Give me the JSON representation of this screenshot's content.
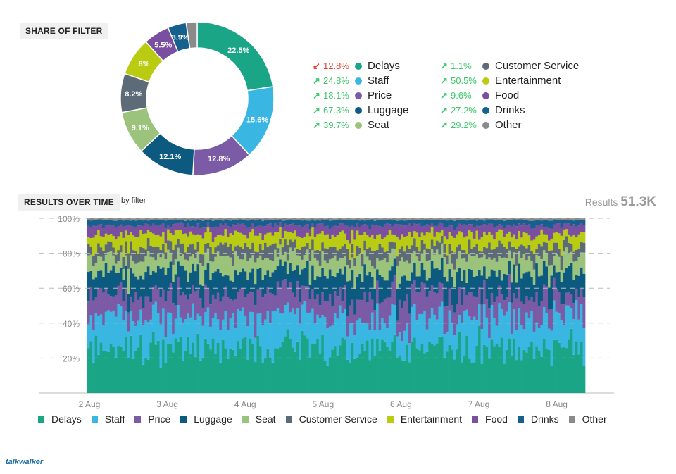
{
  "share_section": {
    "title": "SHARE OF FILTER"
  },
  "time_section": {
    "title": "RESULTS OVER TIME",
    "by_filter": "by filter",
    "results_label": "Results",
    "results_value": "51.3K"
  },
  "brand": "talkwalker",
  "colors": {
    "Delays": "#1aa686",
    "Staff": "#3ab6e2",
    "Price": "#7b5aa6",
    "Luggage": "#0d5a80",
    "Seat": "#9bc37b",
    "Customer Service": "#5d6b78",
    "Entertainment": "#b9cc12",
    "Food": "#7a4fa0",
    "Drinks": "#16608e",
    "Other": "#8a8a8a",
    "up": "#3cc76b",
    "down": "#e3402f"
  },
  "chart_data": [
    {
      "type": "pie",
      "title": "SHARE OF FILTER",
      "categories": [
        "Delays",
        "Staff",
        "Price",
        "Luggage",
        "Seat",
        "Customer Service",
        "Entertainment",
        "Food",
        "Drinks",
        "Other"
      ],
      "values": [
        22.5,
        15.6,
        12.8,
        12.1,
        9.1,
        8.2,
        8,
        5.5,
        3.9,
        2.3
      ],
      "slice_labels": [
        "22.5%",
        "15.6%",
        "12.8%",
        "12.1%",
        "9.1%",
        "8.2%",
        "8%",
        "5.5%",
        "3.9%",
        ""
      ],
      "legend": [
        {
          "name": "Delays",
          "change": "12.8%",
          "direction": "down"
        },
        {
          "name": "Staff",
          "change": "24.8%",
          "direction": "up"
        },
        {
          "name": "Price",
          "change": "18.1%",
          "direction": "up"
        },
        {
          "name": "Luggage",
          "change": "67.3%",
          "direction": "up"
        },
        {
          "name": "Seat",
          "change": "39.7%",
          "direction": "up"
        },
        {
          "name": "Customer Service",
          "change": "1.1%",
          "direction": "up"
        },
        {
          "name": "Entertainment",
          "change": "50.5%",
          "direction": "up"
        },
        {
          "name": "Food",
          "change": "9.6%",
          "direction": "up"
        },
        {
          "name": "Drinks",
          "change": "27.2%",
          "direction": "up"
        },
        {
          "name": "Other",
          "change": "29.2%",
          "direction": "up"
        }
      ]
    },
    {
      "type": "area",
      "title": "RESULTS OVER TIME",
      "stacking": "percent",
      "x_ticks": [
        "2 Aug",
        "3 Aug",
        "4 Aug",
        "5 Aug",
        "6 Aug",
        "7 Aug",
        "8 Aug"
      ],
      "y_ticks": [
        "20%",
        "40%",
        "60%",
        "80%",
        "100%"
      ],
      "ylim": [
        0,
        100
      ],
      "grid": true,
      "legend_placement": "bottom",
      "series": [
        {
          "name": "Delays",
          "avg_share": 25
        },
        {
          "name": "Staff",
          "avg_share": 18
        },
        {
          "name": "Price",
          "avg_share": 13
        },
        {
          "name": "Luggage",
          "avg_share": 13
        },
        {
          "name": "Seat",
          "avg_share": 9
        },
        {
          "name": "Customer Service",
          "avg_share": 6
        },
        {
          "name": "Entertainment",
          "avg_share": 7
        },
        {
          "name": "Food",
          "avg_share": 5
        },
        {
          "name": "Drinks",
          "avg_share": 3
        },
        {
          "name": "Other",
          "avg_share": 1
        }
      ]
    }
  ]
}
